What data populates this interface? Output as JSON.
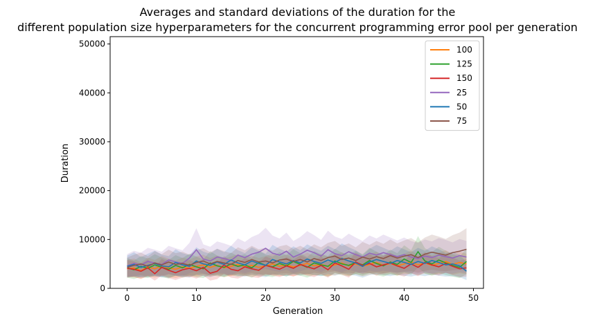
{
  "chart_data": {
    "type": "line",
    "title": "Averages and standard deviations of the duration for the\ndifferent population size hyperparameters for the concurrent programming error pool per generation",
    "title_lines": [
      "Averages and standard deviations of the duration for the",
      "different population size hyperparameters for the concurrent programming error pool per generation"
    ],
    "xlabel": "Generation",
    "ylabel": "Duration",
    "xlim": [
      -2.45,
      51.45
    ],
    "ylim": [
      0,
      51500
    ],
    "xticks": [
      0,
      10,
      20,
      30,
      40,
      50
    ],
    "yticks": [
      0,
      10000,
      20000,
      30000,
      40000,
      50000
    ],
    "grid": false,
    "legend_position": "top-right",
    "shaded_band": "mean ± std",
    "series": [
      {
        "name": "100",
        "color": "#ff7f0e",
        "mean": [
          4000,
          4200,
          3600,
          4400,
          4000,
          4600,
          4200,
          3900,
          4400,
          4100,
          4500,
          4800,
          4300,
          4700,
          4200,
          4500,
          4900,
          4400,
          4700,
          4300,
          4600,
          5000,
          4500,
          4800,
          4400,
          4700,
          5100,
          4600,
          4900,
          4500,
          4800,
          5200,
          4600,
          5000,
          4500,
          4900,
          5300,
          4700,
          5100,
          4600,
          5000,
          5400,
          4800,
          5200,
          4700,
          5100,
          5500,
          4900,
          5300,
          5000
        ],
        "std": [
          1800,
          1900,
          1700,
          1900,
          1800,
          2000,
          1900,
          1800,
          1900,
          1800,
          2000,
          2100,
          1900,
          2000,
          1900,
          2000,
          2100,
          1900,
          2000,
          1900,
          2000,
          2100,
          2000,
          2100,
          1900,
          2000,
          2200,
          2000,
          2100,
          2000,
          2100,
          2200,
          2000,
          2100,
          2000,
          2100,
          2200,
          2000,
          2200,
          2000,
          2100,
          2300,
          2100,
          2200,
          2000,
          2200,
          2300,
          2100,
          2200,
          2100
        ]
      },
      {
        "name": "125",
        "color": "#2ca02c",
        "mean": [
          4200,
          3800,
          4500,
          4100,
          4800,
          4300,
          3900,
          4700,
          4200,
          4900,
          4400,
          4000,
          5200,
          4600,
          4300,
          5000,
          4500,
          4800,
          4200,
          5300,
          4700,
          4400,
          5100,
          4600,
          5500,
          4900,
          4300,
          5200,
          4800,
          4500,
          5600,
          5000,
          4700,
          5300,
          4800,
          5700,
          5100,
          4600,
          5400,
          4900,
          6000,
          5300,
          7500,
          5600,
          5000,
          5800,
          5200,
          4700,
          4300,
          5500
        ],
        "std": [
          2000,
          1900,
          2100,
          2000,
          2200,
          2000,
          1900,
          2100,
          2000,
          2200,
          2100,
          1900,
          2400,
          2100,
          2000,
          2300,
          2100,
          2200,
          2000,
          2400,
          2200,
          2100,
          2300,
          2200,
          2500,
          2300,
          2100,
          2400,
          2200,
          2100,
          2500,
          2300,
          2200,
          2400,
          2200,
          2600,
          2400,
          2200,
          2500,
          2300,
          2800,
          2500,
          3200,
          2600,
          2400,
          2700,
          2500,
          2300,
          2200,
          2600
        ]
      },
      {
        "name": "150",
        "color": "#d62728",
        "mean": [
          4100,
          3900,
          3500,
          4200,
          3000,
          4300,
          3700,
          3200,
          3800,
          4100,
          3600,
          4300,
          3100,
          3500,
          4800,
          3900,
          3600,
          4400,
          4000,
          3700,
          4700,
          4300,
          3900,
          4600,
          4100,
          4900,
          4400,
          4000,
          4700,
          3800,
          5200,
          4600,
          3900,
          5400,
          4700,
          5100,
          4400,
          4800,
          5200,
          4600,
          4100,
          5000,
          4300,
          5300,
          4800,
          4400,
          5100,
          4500,
          4000,
          4200
        ],
        "std": [
          1700,
          1600,
          1500,
          1700,
          1400,
          1700,
          1600,
          1500,
          1600,
          1700,
          1600,
          1700,
          1500,
          1600,
          1800,
          1700,
          1600,
          1800,
          1700,
          1600,
          1800,
          1700,
          1600,
          1800,
          1700,
          1900,
          1800,
          1700,
          1800,
          1600,
          2000,
          1800,
          1700,
          2000,
          1800,
          1900,
          1800,
          1800,
          2000,
          1800,
          1700,
          1900,
          1800,
          2000,
          1800,
          1800,
          1900,
          1800,
          1700,
          1800
        ]
      },
      {
        "name": "25",
        "color": "#9467bd",
        "mean": [
          4600,
          5100,
          4800,
          5500,
          5200,
          4900,
          5800,
          5400,
          5100,
          6200,
          7900,
          6000,
          5600,
          6400,
          6100,
          5700,
          6800,
          6300,
          7000,
          7400,
          8200,
          7200,
          6800,
          7600,
          6400,
          7000,
          7800,
          7300,
          6600,
          7900,
          7100,
          6700,
          7500,
          6900,
          6400,
          7200,
          6800,
          7300,
          6900,
          6500,
          6900,
          6400,
          6100,
          6600,
          6300,
          6800,
          6500,
          6200,
          6700,
          6400
        ],
        "std": [
          2400,
          2600,
          2500,
          2800,
          2700,
          2600,
          2900,
          2800,
          2700,
          3100,
          4400,
          3000,
          2900,
          3200,
          3100,
          3000,
          3400,
          3200,
          3500,
          3700,
          4200,
          3600,
          3400,
          3800,
          3300,
          3500,
          3900,
          3600,
          3300,
          3900,
          3500,
          3400,
          3700,
          3500,
          3300,
          3600,
          3400,
          3700,
          3500,
          3300,
          3500,
          3300,
          3200,
          3400,
          3300,
          3500,
          3400,
          3200,
          3400,
          3300
        ]
      },
      {
        "name": "50",
        "color": "#1f77b4",
        "mean": [
          4500,
          4900,
          4300,
          4700,
          5100,
          4600,
          4400,
          5300,
          4800,
          4500,
          5600,
          5000,
          4700,
          5400,
          4900,
          5800,
          5200,
          4800,
          5600,
          5100,
          4700,
          5900,
          5400,
          5000,
          5700,
          5200,
          6000,
          5500,
          5100,
          5800,
          5300,
          6100,
          5600,
          5200,
          4500,
          5400,
          5900,
          5500,
          5100,
          5700,
          5300,
          4900,
          5500,
          5100,
          5700,
          5300,
          4800,
          5000,
          4600,
          3500
        ],
        "std": [
          2200,
          2500,
          2100,
          2400,
          2600,
          2300,
          2200,
          2700,
          2400,
          2300,
          2800,
          2500,
          2400,
          2700,
          2500,
          2900,
          2600,
          2400,
          2800,
          2600,
          2400,
          3000,
          2700,
          2500,
          2900,
          2600,
          3000,
          2800,
          2600,
          2900,
          2700,
          3100,
          2800,
          2600,
          2300,
          2700,
          3000,
          2800,
          2600,
          2900,
          2700,
          2500,
          2800,
          2600,
          2900,
          2700,
          2400,
          2500,
          2300,
          1800
        ]
      },
      {
        "name": "75",
        "color": "#8c564b",
        "mean": [
          4300,
          4700,
          5000,
          4500,
          5200,
          4800,
          5400,
          4900,
          5100,
          4700,
          5300,
          5600,
          5000,
          5500,
          5200,
          4900,
          5700,
          5300,
          5900,
          5400,
          5600,
          5200,
          5800,
          6000,
          5500,
          5900,
          5400,
          6100,
          5700,
          6300,
          6600,
          5900,
          6200,
          5700,
          6400,
          6000,
          6500,
          6100,
          6700,
          6200,
          6600,
          6900,
          6300,
          7000,
          7400,
          7100,
          6800,
          7300,
          7600,
          8000
        ],
        "std": [
          2000,
          2200,
          2300,
          2100,
          2400,
          2200,
          2500,
          2300,
          2400,
          2200,
          2500,
          2600,
          2400,
          2600,
          2400,
          2300,
          2700,
          2500,
          2800,
          2600,
          2700,
          2500,
          2800,
          2900,
          2600,
          2800,
          2600,
          2900,
          2700,
          3000,
          3100,
          2800,
          3000,
          2700,
          3100,
          2900,
          3200,
          3000,
          3300,
          3000,
          3200,
          3400,
          3100,
          3400,
          3600,
          3500,
          3300,
          3600,
          3800,
          4300
        ]
      }
    ]
  }
}
